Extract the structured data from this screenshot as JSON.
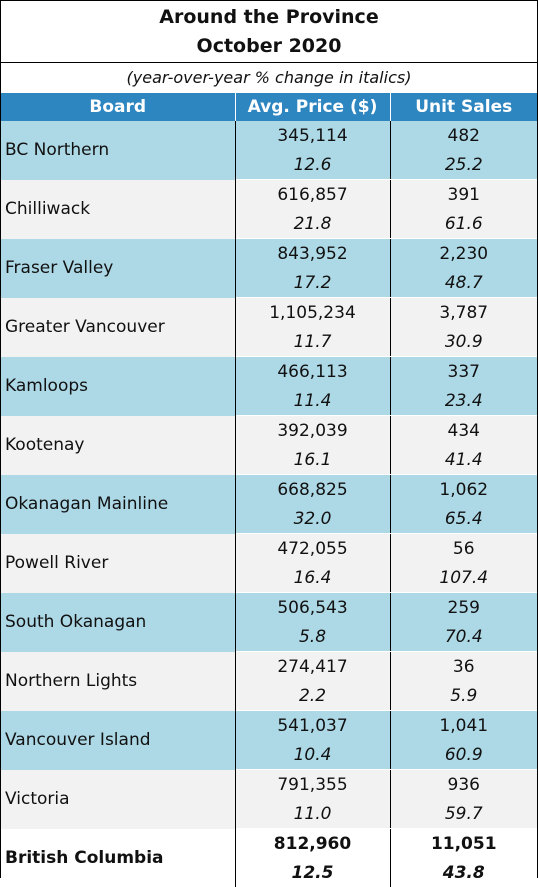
{
  "header": {
    "title_line1": "Around the Province",
    "title_line2": "October 2020",
    "subtitle": "(year-over-year % change in italics)"
  },
  "columns": [
    "Board",
    "Avg. Price ($)",
    "Unit Sales"
  ],
  "rows": [
    {
      "board": "BC Northern",
      "price": "345,114",
      "price_change": "12.6",
      "sales": "482",
      "sales_change": "25.2"
    },
    {
      "board": "Chilliwack",
      "price": "616,857",
      "price_change": "21.8",
      "sales": "391",
      "sales_change": "61.6"
    },
    {
      "board": "Fraser Valley",
      "price": "843,952",
      "price_change": "17.2",
      "sales": "2,230",
      "sales_change": "48.7"
    },
    {
      "board": "Greater Vancouver",
      "price": "1,105,234",
      "price_change": "11.7",
      "sales": "3,787",
      "sales_change": "30.9"
    },
    {
      "board": "Kamloops",
      "price": "466,113",
      "price_change": "11.4",
      "sales": "337",
      "sales_change": "23.4"
    },
    {
      "board": "Kootenay",
      "price": "392,039",
      "price_change": "16.1",
      "sales": "434",
      "sales_change": "41.4"
    },
    {
      "board": "Okanagan Mainline",
      "price": "668,825",
      "price_change": "32.0",
      "sales": "1,062",
      "sales_change": "65.4"
    },
    {
      "board": "Powell River",
      "price": "472,055",
      "price_change": "16.4",
      "sales": "56",
      "sales_change": "107.4"
    },
    {
      "board": "South Okanagan",
      "price": "506,543",
      "price_change": "5.8",
      "sales": "259",
      "sales_change": "70.4"
    },
    {
      "board": "Northern Lights",
      "price": "274,417",
      "price_change": "2.2",
      "sales": "36",
      "sales_change": "5.9"
    },
    {
      "board": "Vancouver Island",
      "price": "541,037",
      "price_change": "10.4",
      "sales": "1,041",
      "sales_change": "60.9"
    },
    {
      "board": "Victoria",
      "price": "791,355",
      "price_change": "11.0",
      "sales": "936",
      "sales_change": "59.7"
    }
  ],
  "total": {
    "board": "British Columbia",
    "price": "812,960",
    "price_change": "12.5",
    "sales": "11,051",
    "sales_change": "43.8"
  },
  "colors": {
    "header_bg": "#2e86c1",
    "band_bg": "#add8e6",
    "alt_bg": "#f2f2f2"
  }
}
